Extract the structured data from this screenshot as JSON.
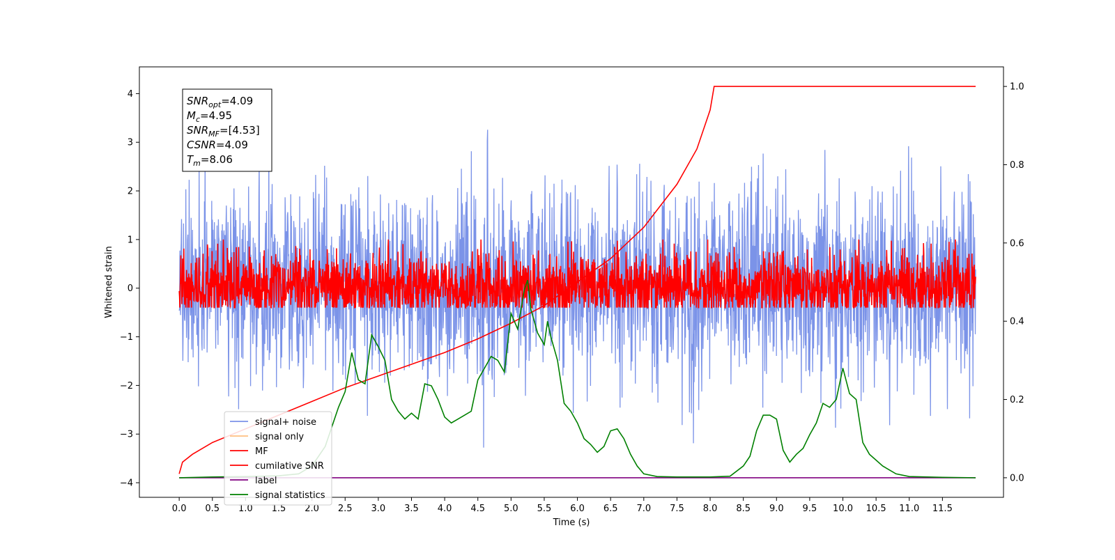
{
  "chart_data": {
    "type": "line",
    "xlabel": "Time (s)",
    "ylabel": "Whitened strain",
    "xlim": [
      -0.6,
      12.42
    ],
    "ylim": [
      -4.3,
      4.55
    ],
    "y2lim": [
      -0.05,
      1.05
    ],
    "x_ticks": [
      0.0,
      0.5,
      1.0,
      1.5,
      2.0,
      2.5,
      3.0,
      3.5,
      4.0,
      4.5,
      5.0,
      5.5,
      6.0,
      6.5,
      7.0,
      7.5,
      8.0,
      8.5,
      9.0,
      9.5,
      10.0,
      10.5,
      11.0,
      11.5
    ],
    "x_tick_labels": [
      "0.0",
      "0.5",
      "1.0",
      "1.5",
      "2.0",
      "2.5",
      "3.0",
      "3.5",
      "4.0",
      "4.5",
      "5.0",
      "5.5",
      "6.0",
      "6.5",
      "7.0",
      "7.5",
      "8.0",
      "8.5",
      "9.0",
      "9.5",
      "10.0",
      "10.5",
      "11.0",
      "11.5"
    ],
    "y_ticks": [
      -4,
      -3,
      -2,
      -1,
      0,
      1,
      2,
      3,
      4
    ],
    "y_tick_labels": [
      "−4",
      "−3",
      "−2",
      "−1",
      "0",
      "1",
      "2",
      "3",
      "4"
    ],
    "y2_ticks": [
      0.0,
      0.2,
      0.4,
      0.6,
      0.8,
      1.0
    ],
    "y2_tick_labels": [
      "0.0",
      "0.2",
      "0.4",
      "0.6",
      "0.8",
      "1.0"
    ],
    "grid": false,
    "legend_position": "lower-left",
    "annotation_lines": [
      {
        "base": "SNR",
        "sub": "opt",
        "rest": "=4.09"
      },
      {
        "base": "M",
        "sub": "c",
        "rest": "=4.95"
      },
      {
        "base": "SNR",
        "sub": "MF",
        "rest": "=[4.53]"
      },
      {
        "base": "CSNR",
        "sub": "",
        "rest": "=4.09"
      },
      {
        "base": "T",
        "sub": "m",
        "rest": "=8.06"
      }
    ],
    "series": [
      {
        "name": "signal+ noise",
        "axis": "left",
        "color": "#7b93e8",
        "kind": "noise",
        "x_range": [
          0.0,
          12.0
        ],
        "typical_range": [
          -1.0,
          1.1
        ],
        "extremes": [
          -3.5,
          4.2
        ]
      },
      {
        "name": "signal only",
        "axis": "left",
        "color": "#ffbf80",
        "kind": "hidden",
        "x": [],
        "y": []
      },
      {
        "name": "MF",
        "axis": "left",
        "color": "#ff0000",
        "kind": "noise",
        "x_range": [
          0.0,
          12.0
        ],
        "typical_range": [
          -0.35,
          0.4
        ],
        "extremes": [
          -0.4,
          1.0
        ]
      },
      {
        "name": "cumilative SNR",
        "axis": "right",
        "color": "#ff0000",
        "kind": "line",
        "x": [
          0.0,
          0.05,
          0.2,
          0.5,
          1.0,
          1.5,
          2.0,
          2.5,
          3.0,
          3.5,
          4.0,
          4.5,
          5.0,
          5.5,
          6.0,
          6.5,
          7.0,
          7.5,
          7.8,
          8.0,
          8.06,
          12.0
        ],
        "y": [
          0.01,
          0.04,
          0.06,
          0.09,
          0.125,
          0.16,
          0.195,
          0.23,
          0.26,
          0.29,
          0.32,
          0.355,
          0.395,
          0.44,
          0.5,
          0.56,
          0.64,
          0.75,
          0.84,
          0.94,
          1.0,
          1.0
        ]
      },
      {
        "name": "label",
        "axis": "right",
        "color": "#800080",
        "kind": "line",
        "x": [
          0.0,
          12.0
        ],
        "y": [
          0.0,
          0.0
        ]
      },
      {
        "name": "signal statistics",
        "axis": "right",
        "color": "#008000",
        "kind": "line",
        "x": [
          0.0,
          0.5,
          1.0,
          1.5,
          1.8,
          2.0,
          2.2,
          2.4,
          2.5,
          2.6,
          2.7,
          2.8,
          2.9,
          3.0,
          3.1,
          3.2,
          3.3,
          3.4,
          3.5,
          3.6,
          3.7,
          3.8,
          3.9,
          4.0,
          4.1,
          4.2,
          4.3,
          4.4,
          4.5,
          4.6,
          4.7,
          4.8,
          4.9,
          5.0,
          5.1,
          5.2,
          5.25,
          5.3,
          5.4,
          5.5,
          5.55,
          5.6,
          5.7,
          5.8,
          5.9,
          6.0,
          6.1,
          6.2,
          6.3,
          6.4,
          6.5,
          6.6,
          6.7,
          6.8,
          6.9,
          7.0,
          7.2,
          7.5,
          8.0,
          8.3,
          8.5,
          8.6,
          8.7,
          8.8,
          8.9,
          9.0,
          9.1,
          9.2,
          9.3,
          9.4,
          9.5,
          9.6,
          9.7,
          9.8,
          9.9,
          10.0,
          10.1,
          10.2,
          10.3,
          10.4,
          10.5,
          10.6,
          10.7,
          10.8,
          11.0,
          11.5,
          12.0
        ],
        "y": [
          0.0,
          0.002,
          0.003,
          0.005,
          0.01,
          0.03,
          0.08,
          0.18,
          0.22,
          0.32,
          0.25,
          0.24,
          0.365,
          0.335,
          0.3,
          0.2,
          0.17,
          0.15,
          0.165,
          0.15,
          0.24,
          0.235,
          0.2,
          0.155,
          0.14,
          0.15,
          0.16,
          0.17,
          0.25,
          0.28,
          0.31,
          0.3,
          0.27,
          0.42,
          0.38,
          0.48,
          0.505,
          0.43,
          0.37,
          0.34,
          0.4,
          0.36,
          0.3,
          0.19,
          0.17,
          0.14,
          0.1,
          0.085,
          0.065,
          0.08,
          0.12,
          0.125,
          0.1,
          0.06,
          0.03,
          0.01,
          0.003,
          0.002,
          0.002,
          0.004,
          0.03,
          0.055,
          0.12,
          0.16,
          0.16,
          0.15,
          0.07,
          0.04,
          0.06,
          0.075,
          0.11,
          0.14,
          0.19,
          0.18,
          0.2,
          0.28,
          0.215,
          0.2,
          0.09,
          0.06,
          0.045,
          0.03,
          0.02,
          0.01,
          0.003,
          0.001,
          0.0
        ]
      }
    ]
  }
}
